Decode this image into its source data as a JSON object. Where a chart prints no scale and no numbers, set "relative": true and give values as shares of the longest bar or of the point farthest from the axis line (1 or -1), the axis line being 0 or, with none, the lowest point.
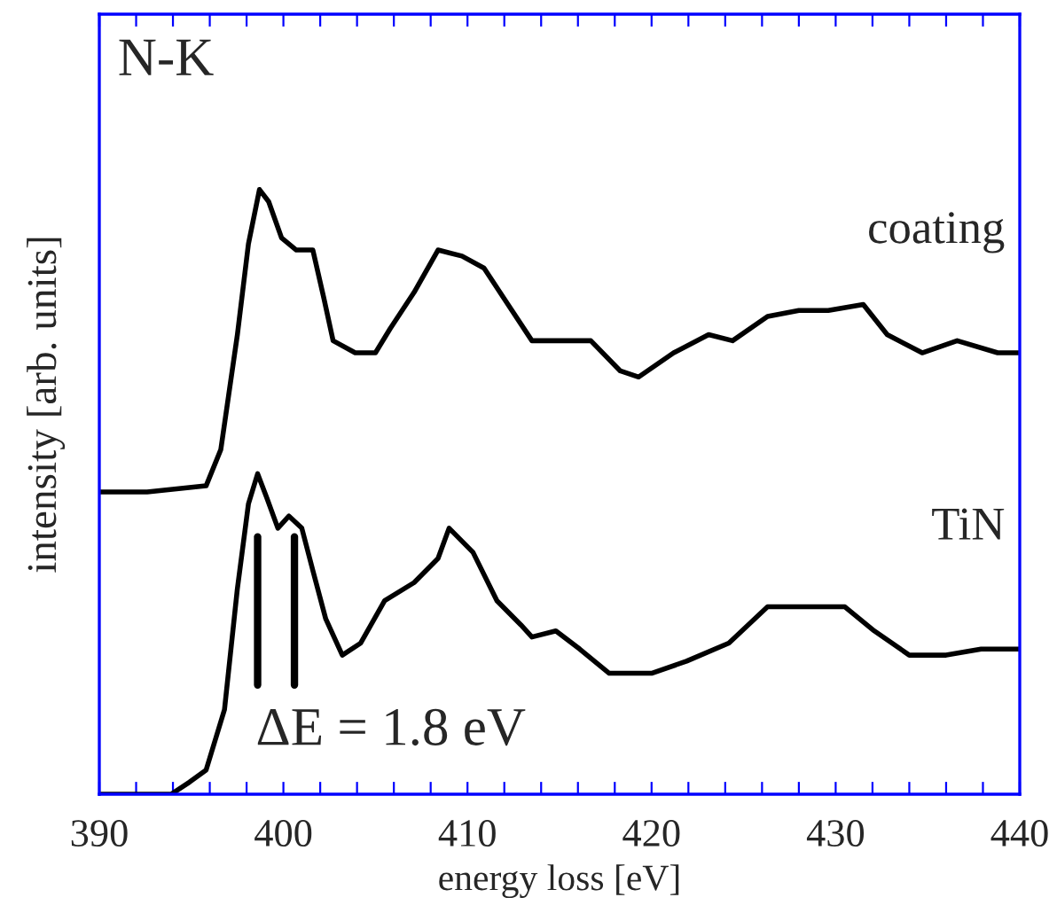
{
  "chart_data": {
    "type": "line",
    "relative": true,
    "xlabel": "energy loss [eV]",
    "ylabel": "intensity [arb. units]",
    "xlim": [
      390,
      440
    ],
    "xticks": [
      390,
      {
        "value": 392,
        "label": null
      },
      {
        "value": 394,
        "label": null
      },
      {
        "value": 396,
        "label": null
      },
      {
        "value": 398,
        "label": null
      },
      400,
      {
        "value": 402,
        "label": null
      },
      {
        "value": 404,
        "label": null
      },
      {
        "value": 406,
        "label": null
      },
      {
        "value": 408,
        "label": null
      },
      410,
      {
        "value": 412,
        "label": null
      },
      {
        "value": 414,
        "label": null
      },
      {
        "value": 416,
        "label": null
      },
      {
        "value": 418,
        "label": null
      },
      420,
      {
        "value": 422,
        "label": null
      },
      {
        "value": 424,
        "label": null
      },
      {
        "value": 426,
        "label": null
      },
      {
        "value": 428,
        "label": null
      },
      430,
      {
        "value": 432,
        "label": null
      },
      {
        "value": 434,
        "label": null
      },
      {
        "value": 436,
        "label": null
      },
      {
        "value": 438,
        "label": null
      },
      440
    ],
    "grid": false,
    "legend": false,
    "marker": "none",
    "line_style": "solid",
    "annotations": [
      "N-K",
      "ΔE = 1.8 eV"
    ],
    "series": [
      {
        "name": "coating",
        "color": "#000000",
        "x": [
          390,
          392.6,
          395.8,
          396.6,
          397.5,
          398.1,
          398.7,
          399.2,
          399.9,
          400.7,
          401.6,
          402.2,
          402.7,
          403.9,
          405.0,
          405.8,
          407.1,
          408.4,
          409.7,
          410.9,
          412.2,
          413.5,
          416.7,
          418.3,
          419.3,
          421.2,
          423.1,
          424.4,
          426.3,
          428.0,
          429.6,
          431.5,
          432.8,
          434.7,
          436.6,
          438.8,
          440
        ],
        "values": [
          0.5,
          0.5,
          0.51,
          0.57,
          0.76,
          0.91,
          1.0,
          0.98,
          0.92,
          0.9,
          0.9,
          0.82,
          0.75,
          0.73,
          0.73,
          0.77,
          0.83,
          0.9,
          0.89,
          0.87,
          0.81,
          0.75,
          0.75,
          0.7,
          0.69,
          0.73,
          0.76,
          0.75,
          0.79,
          0.8,
          0.8,
          0.81,
          0.76,
          0.73,
          0.75,
          0.73,
          0.73
        ]
      },
      {
        "name": "TiN",
        "color": "#000000",
        "x": [
          390,
          393.9,
          394.9,
          395.8,
          396.8,
          397.5,
          398.1,
          398.6,
          399.1,
          399.7,
          400.3,
          401.0,
          401.6,
          402.3,
          403.2,
          404.2,
          405.5,
          407.1,
          408.4,
          409.0,
          410.3,
          411.6,
          412.9,
          413.5,
          414.8,
          416.1,
          417.7,
          420.0,
          421.9,
          424.2,
          426.3,
          428.6,
          430.5,
          432.1,
          434.0,
          436.0,
          437.9,
          440
        ],
        "values": [
          0.0,
          0.0,
          0.02,
          0.04,
          0.14,
          0.34,
          0.48,
          0.53,
          0.49,
          0.44,
          0.46,
          0.44,
          0.37,
          0.29,
          0.23,
          0.25,
          0.32,
          0.35,
          0.39,
          0.44,
          0.4,
          0.32,
          0.28,
          0.26,
          0.27,
          0.24,
          0.2,
          0.2,
          0.22,
          0.25,
          0.31,
          0.31,
          0.31,
          0.27,
          0.23,
          0.23,
          0.24,
          0.24
        ]
      }
    ]
  }
}
